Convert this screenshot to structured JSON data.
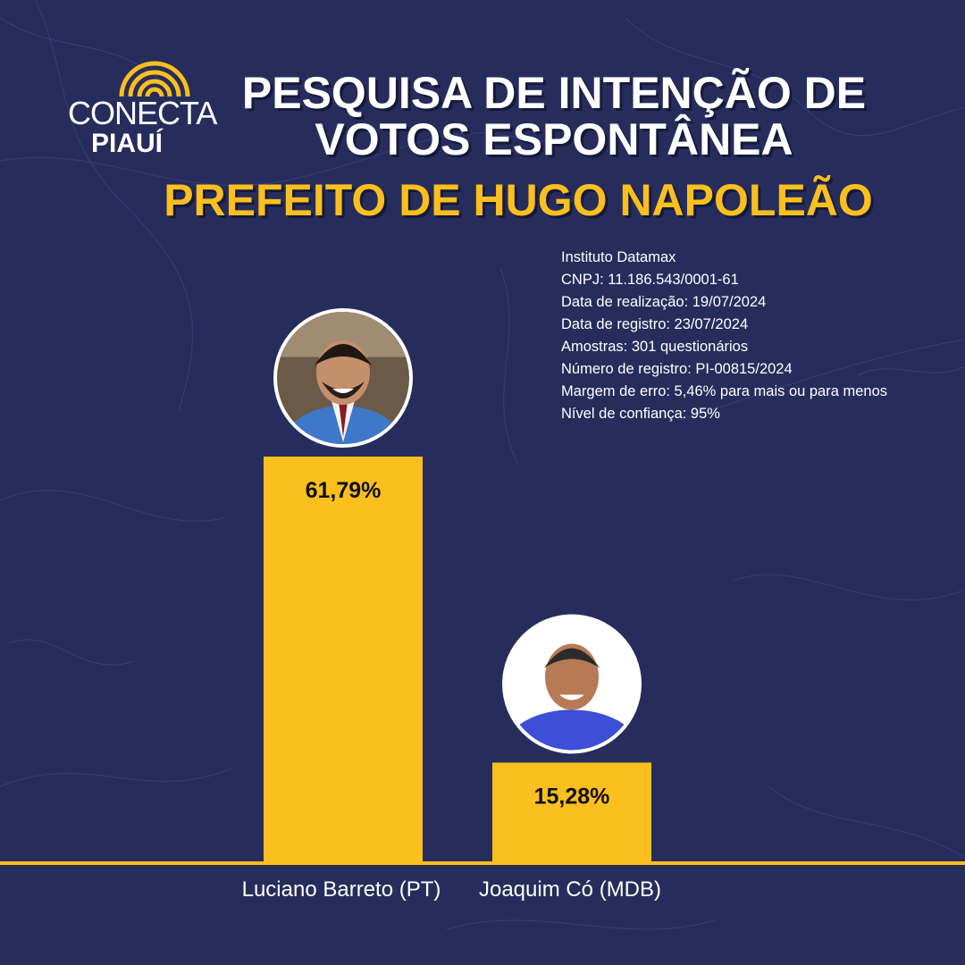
{
  "logo": {
    "line1": "CONECTA",
    "line2": "PIAUÍ"
  },
  "title": {
    "line1": "PESQUISA DE INTENÇÃO DE",
    "line2": "VOTOS ESPONTÂNEA",
    "subtitle": "PREFEITO DE HUGO NAPOLEÃO"
  },
  "info": [
    "Instituto Datamax",
    "CNPJ: 11.186.543/0001-61",
    "Data de realização: 19/07/2024",
    "Data de registro: 23/07/2024",
    "Amostras: 301 questionários",
    "Número de registro: PI-00815/2024",
    "Margem de erro: 5,46% para mais ou para menos",
    "Nível de confiança: 95%"
  ],
  "colors": {
    "background": "#262d5c",
    "accent": "#fbbf1e",
    "text": "#ffffff"
  },
  "chart_data": {
    "type": "bar",
    "categories": [
      "Luciano Barreto (PT)",
      "Joaquim Có (MDB)"
    ],
    "values": [
      61.79,
      15.28
    ],
    "value_labels": [
      "61,79%",
      "15,28%"
    ],
    "unit": "%",
    "ylim": [
      0,
      66
    ],
    "grid": false,
    "legend": "none",
    "bar_color": "#fbbf1e"
  }
}
